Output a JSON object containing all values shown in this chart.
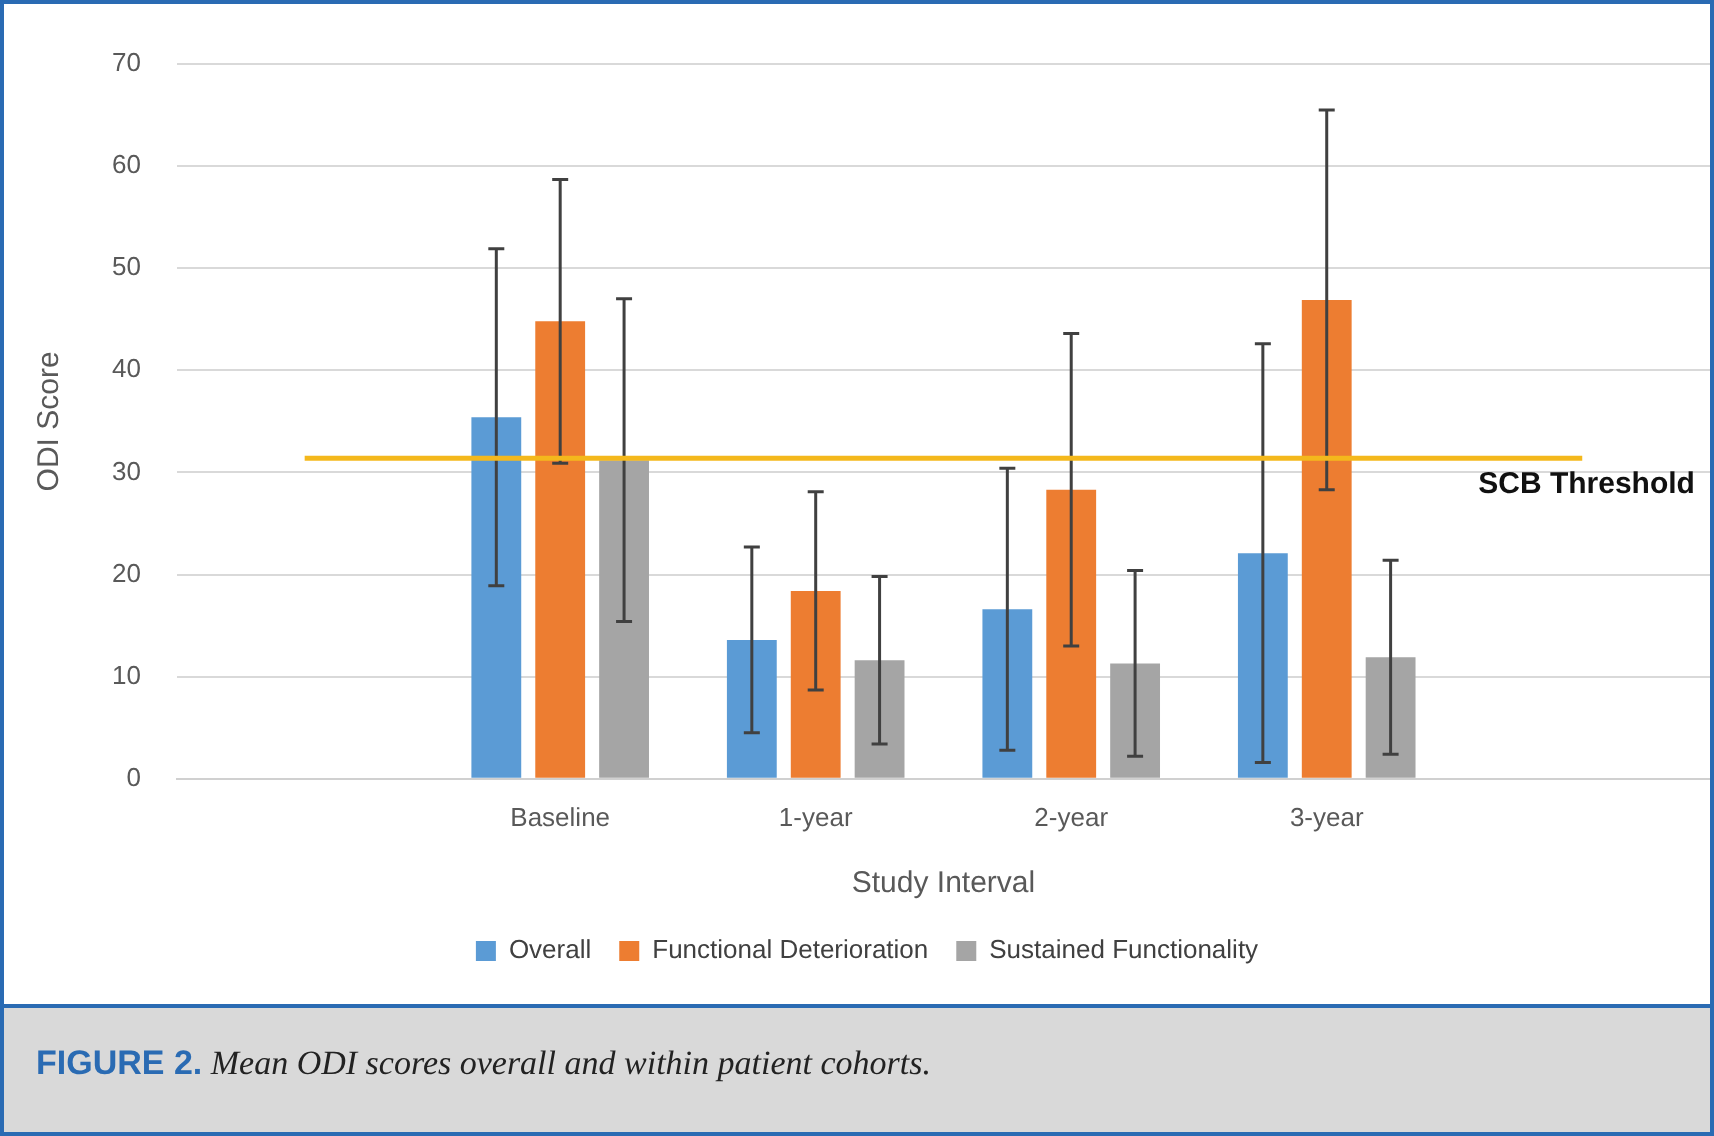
{
  "chart_data": {
    "type": "bar",
    "xlabel": "Study Interval",
    "ylabel": "ODI Score",
    "categories": [
      null,
      "Baseline",
      "1-year",
      "2-year",
      "3-year",
      null
    ],
    "series": [
      {
        "name": "Overall",
        "color": "#5b9bd5",
        "values": [
          null,
          35.4,
          13.6,
          16.6,
          22.1,
          null
        ],
        "errors": [
          null,
          16.5,
          9.1,
          13.8,
          20.5,
          null
        ]
      },
      {
        "name": "Functional Deterioration",
        "color": "#ed7d31",
        "values": [
          null,
          44.8,
          18.4,
          28.3,
          46.9,
          null
        ],
        "errors": [
          null,
          13.9,
          9.7,
          15.3,
          18.6,
          null
        ]
      },
      {
        "name": "Sustained Functionality",
        "color": "#a5a5a5",
        "values": [
          null,
          31.2,
          11.6,
          11.3,
          11.9,
          null
        ],
        "errors": [
          null,
          15.8,
          8.2,
          9.1,
          9.5,
          null
        ]
      }
    ],
    "ylim": [
      0,
      70
    ],
    "yticks": [
      0,
      10,
      20,
      30,
      40,
      50,
      60,
      70
    ],
    "grid": "y",
    "legend": "bottom",
    "ref_lines": [
      {
        "axis": "y",
        "value": 31.4,
        "label": "SCB Threshold",
        "color": "#f4b81c"
      }
    ],
    "annotations": [
      "FIGURE 2. Mean ODI scores overall and within patient cohorts."
    ]
  }
}
